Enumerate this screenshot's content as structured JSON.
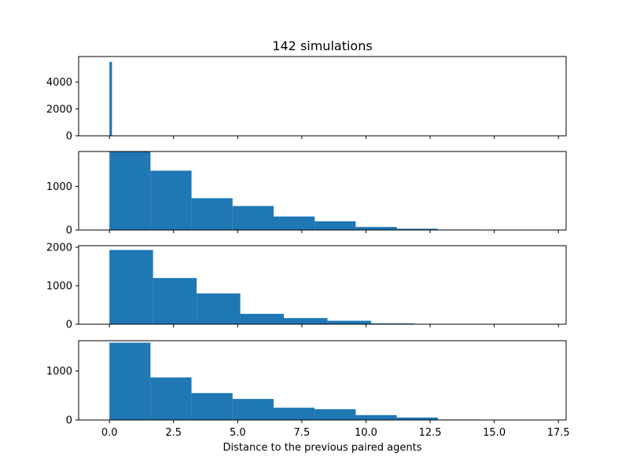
{
  "chart_data": {
    "type": "bar",
    "title": "142 simulations",
    "xlabel": "Distance to the previous paired agents",
    "xlim": [
      -1.2,
      17.8
    ],
    "xticks": [
      0.0,
      2.5,
      5.0,
      7.5,
      10.0,
      12.5,
      15.0,
      17.5
    ],
    "xtick_labels": [
      "0.0",
      "2.5",
      "5.0",
      "7.5",
      "10.0",
      "12.5",
      "15.0",
      "17.5"
    ],
    "bar_color": "#1f77b4",
    "subplots": [
      {
        "ylim": [
          0,
          5900
        ],
        "yticks": [
          0,
          2000,
          4000
        ],
        "ytick_labels": [
          "0",
          "2000",
          "4000"
        ],
        "bin_edges": [
          0.0,
          0.1
        ],
        "values": [
          5500
        ]
      },
      {
        "ylim": [
          0,
          1800
        ],
        "yticks": [
          0,
          1000
        ],
        "ytick_labels": [
          "0",
          "1000"
        ],
        "bin_edges": [
          0.0,
          1.6,
          3.2,
          4.8,
          6.4,
          8.0,
          9.6,
          11.2,
          12.8,
          14.4
        ],
        "values": [
          1800,
          1360,
          730,
          550,
          310,
          200,
          70,
          30,
          10
        ]
      },
      {
        "ylim": [
          0,
          2040
        ],
        "yticks": [
          0,
          1000,
          2000
        ],
        "ytick_labels": [
          "0",
          "1000",
          "2000"
        ],
        "bin_edges": [
          0.0,
          1.7,
          3.4,
          5.1,
          6.8,
          8.5,
          10.2,
          11.9,
          13.6
        ],
        "values": [
          1930,
          1200,
          800,
          270,
          160,
          90,
          20,
          5
        ]
      },
      {
        "ylim": [
          0,
          1620
        ],
        "yticks": [
          0,
          1000
        ],
        "ytick_labels": [
          "0",
          "1000"
        ],
        "bin_edges": [
          0.0,
          1.6,
          3.2,
          4.8,
          6.4,
          8.0,
          9.6,
          11.2,
          12.8,
          14.4
        ],
        "values": [
          1580,
          870,
          550,
          430,
          250,
          220,
          100,
          50,
          10
        ]
      }
    ]
  }
}
